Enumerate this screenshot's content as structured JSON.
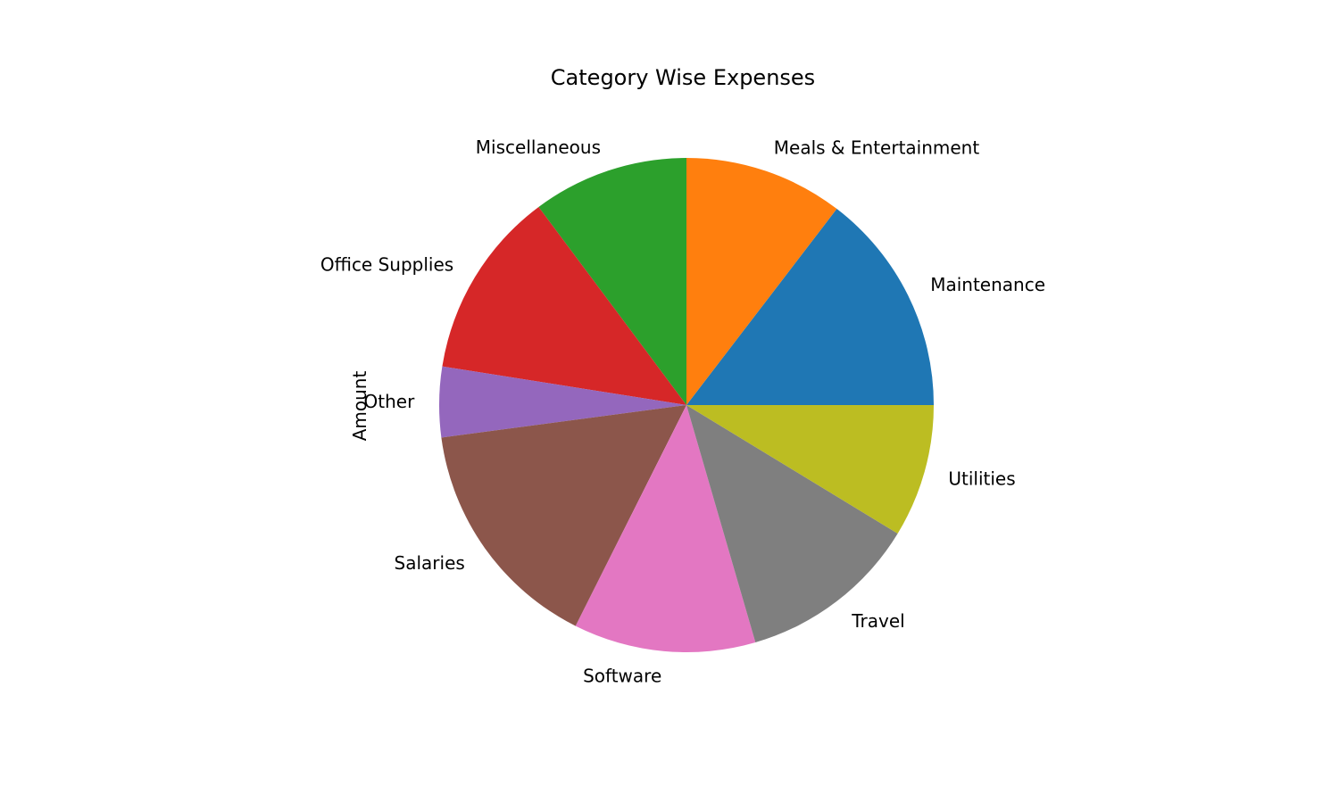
{
  "chart_data": {
    "type": "pie",
    "title": "Category Wise Expenses",
    "ylabel": "Amount",
    "start_angle_deg": 0,
    "direction": "counterclockwise",
    "categories": [
      "Maintenance",
      "Meals & Entertainment",
      "Miscellaneous",
      "Office Supplies",
      "Other",
      "Salaries",
      "Software",
      "Travel",
      "Utilities"
    ],
    "values": [
      14.6,
      10.4,
      10.2,
      12.3,
      4.6,
      15.5,
      11.9,
      11.8,
      8.7
    ],
    "colors": [
      "#1f77b4",
      "#ff7f0e",
      "#2ca02c",
      "#d62728",
      "#9467bd",
      "#8c564b",
      "#e377c2",
      "#7f7f7f",
      "#bcbd22"
    ]
  }
}
